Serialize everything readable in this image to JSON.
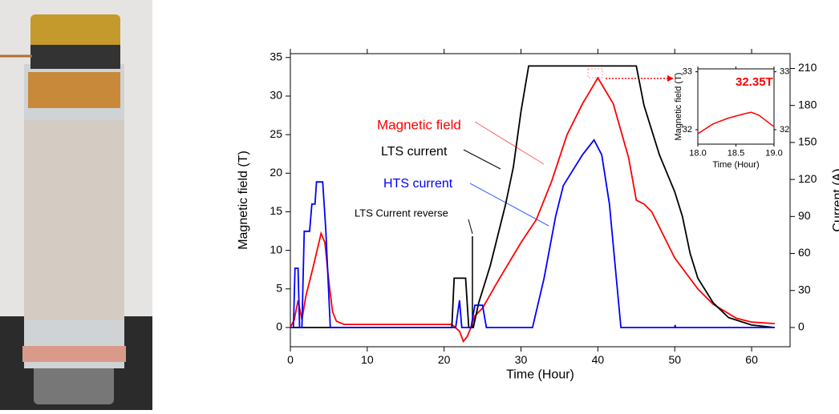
{
  "chart_data": [
    {
      "type": "line",
      "xlabel": "Time (Hour)",
      "ylabel": "Magnetic field (T)",
      "y2label": "Current (A)",
      "xlim": [
        0,
        65
      ],
      "xticks": [
        0,
        10,
        20,
        30,
        40,
        50,
        60
      ],
      "ylim": [
        -2.5,
        35.5
      ],
      "yticks": [
        0,
        5,
        10,
        15,
        20,
        25,
        30,
        35
      ],
      "y2lim": [
        -15.6,
        222
      ],
      "y2ticks": [
        0,
        30,
        60,
        90,
        120,
        150,
        180,
        210
      ],
      "series": [
        {
          "name": "Magnetic field",
          "color": "#ff0000",
          "axis": "y",
          "x": [
            0,
            0.5,
            1,
            1.5,
            2,
            3,
            4,
            4.5,
            5,
            5.5,
            6,
            7,
            21,
            22,
            22.5,
            23,
            23.5,
            24,
            25,
            27,
            30,
            32,
            34,
            36,
            38,
            40,
            42,
            44,
            45,
            46,
            47,
            50,
            53,
            55,
            58,
            60,
            63
          ],
          "values": [
            0,
            1,
            3.5,
            1,
            4,
            8,
            12.2,
            11,
            6,
            2,
            0.8,
            0.4,
            0.4,
            -0.5,
            -1.8,
            -1.2,
            0,
            1.5,
            2.5,
            6,
            11,
            14,
            19,
            25,
            29,
            32.35,
            29,
            22,
            16.5,
            16,
            15,
            9,
            5,
            3,
            1.2,
            0.7,
            0.5
          ]
        },
        {
          "name": "LTS current",
          "color": "#000000",
          "axis": "y2",
          "x": [
            0,
            21,
            21.3,
            22.8,
            23.2,
            23.8,
            24.5,
            26,
            28,
            29,
            30,
            31,
            45,
            46,
            48,
            50,
            51,
            52,
            53,
            55,
            57,
            60,
            63
          ],
          "values": [
            0,
            0,
            40,
            40,
            0,
            0,
            20,
            50,
            100,
            130,
            175,
            212,
            212,
            180,
            140,
            110,
            90,
            60,
            40,
            20,
            8,
            2,
            0
          ]
        },
        {
          "name": "HTS current",
          "color": "#0000ff",
          "axis": "y2",
          "x": [
            0,
            0.4,
            0.6,
            1,
            1.2,
            1.5,
            1.8,
            2.5,
            2.8,
            3.2,
            3.4,
            4.2,
            4.6,
            5.2,
            21.5,
            22,
            22.3,
            23.5,
            24,
            25,
            25.5,
            31.5,
            33,
            34.5,
            35.5,
            37,
            38,
            39.5,
            40.5,
            41.5,
            43,
            50,
            50.05,
            50.1,
            63
          ],
          "values": [
            0,
            0,
            48,
            48,
            0,
            0,
            78,
            78,
            100,
            100,
            118,
            118,
            80,
            0,
            0,
            22,
            0,
            0,
            18,
            18,
            0,
            0,
            40,
            90,
            115,
            130,
            140,
            152,
            140,
            100,
            0,
            0,
            2,
            0,
            0
          ]
        }
      ],
      "annotations": [
        {
          "text": "Magnetic field",
          "color": "#ff0000"
        },
        {
          "text": "LTS current",
          "color": "#000000"
        },
        {
          "text": "HTS current",
          "color": "#0000ff"
        },
        {
          "text": "LTS Current reverse",
          "color": "#000000"
        }
      ]
    },
    {
      "type": "line",
      "xlabel": "Time (Hour)",
      "ylabel": "Magnetic field (T)",
      "xlim": [
        18.0,
        19.0
      ],
      "xticks": [
        {
          "value": 18,
          "label": "18.0"
        },
        18.5,
        {
          "value": 19,
          "label": "19.0"
        }
      ],
      "ylim": [
        31.75,
        33.05
      ],
      "yticks": [
        32,
        33
      ],
      "y2lim": [
        31.75,
        33.05
      ],
      "y2ticks": [
        32,
        33
      ],
      "series": [
        {
          "name": "Magnetic field",
          "color": "#ff0000",
          "axis": "y",
          "x": [
            18.0,
            18.2,
            18.4,
            18.6,
            18.7,
            18.8,
            19.0
          ],
          "values": [
            31.93,
            32.1,
            32.2,
            32.27,
            32.3,
            32.25,
            32.05
          ]
        }
      ],
      "annotations": [
        {
          "text": "32.35T",
          "color": "#ff0000"
        }
      ]
    }
  ]
}
